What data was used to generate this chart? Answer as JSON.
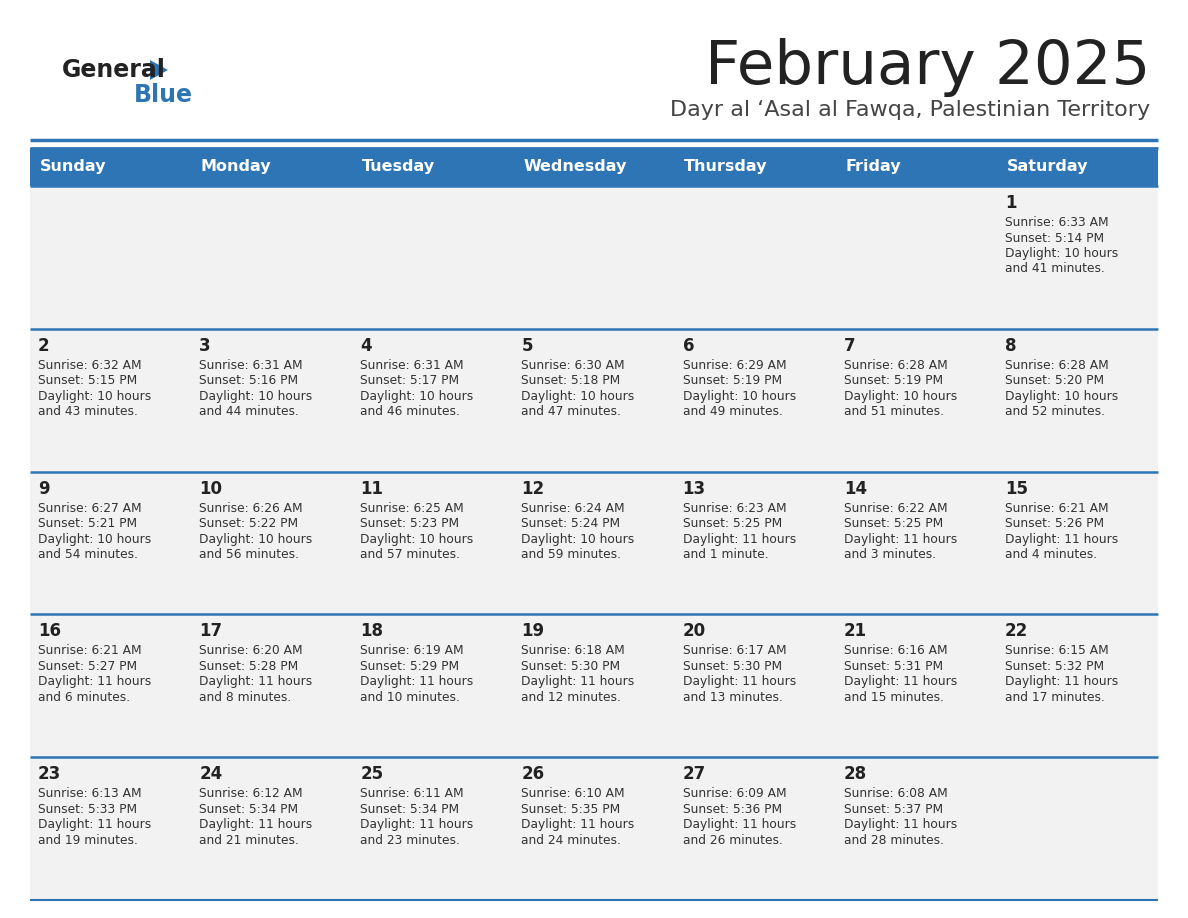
{
  "title": "February 2025",
  "subtitle": "Dayr al ‘Asal al Fawqa, Palestinian Territory",
  "header_color": "#2E75B6",
  "header_text_color": "#FFFFFF",
  "cell_bg": "#F2F2F2",
  "day_names": [
    "Sunday",
    "Monday",
    "Tuesday",
    "Wednesday",
    "Thursday",
    "Friday",
    "Saturday"
  ],
  "title_color": "#222222",
  "subtitle_color": "#444444",
  "line_color": "#2E75B6",
  "day_number_color": "#222222",
  "info_color": "#333333",
  "logo_text_color": "#222222",
  "logo_blue_color": "#2E75B6",
  "calendar": [
    [
      {
        "day": null,
        "info": null
      },
      {
        "day": null,
        "info": null
      },
      {
        "day": null,
        "info": null
      },
      {
        "day": null,
        "info": null
      },
      {
        "day": null,
        "info": null
      },
      {
        "day": null,
        "info": null
      },
      {
        "day": 1,
        "info": "Sunrise: 6:33 AM\nSunset: 5:14 PM\nDaylight: 10 hours\nand 41 minutes."
      }
    ],
    [
      {
        "day": 2,
        "info": "Sunrise: 6:32 AM\nSunset: 5:15 PM\nDaylight: 10 hours\nand 43 minutes."
      },
      {
        "day": 3,
        "info": "Sunrise: 6:31 AM\nSunset: 5:16 PM\nDaylight: 10 hours\nand 44 minutes."
      },
      {
        "day": 4,
        "info": "Sunrise: 6:31 AM\nSunset: 5:17 PM\nDaylight: 10 hours\nand 46 minutes."
      },
      {
        "day": 5,
        "info": "Sunrise: 6:30 AM\nSunset: 5:18 PM\nDaylight: 10 hours\nand 47 minutes."
      },
      {
        "day": 6,
        "info": "Sunrise: 6:29 AM\nSunset: 5:19 PM\nDaylight: 10 hours\nand 49 minutes."
      },
      {
        "day": 7,
        "info": "Sunrise: 6:28 AM\nSunset: 5:19 PM\nDaylight: 10 hours\nand 51 minutes."
      },
      {
        "day": 8,
        "info": "Sunrise: 6:28 AM\nSunset: 5:20 PM\nDaylight: 10 hours\nand 52 minutes."
      }
    ],
    [
      {
        "day": 9,
        "info": "Sunrise: 6:27 AM\nSunset: 5:21 PM\nDaylight: 10 hours\nand 54 minutes."
      },
      {
        "day": 10,
        "info": "Sunrise: 6:26 AM\nSunset: 5:22 PM\nDaylight: 10 hours\nand 56 minutes."
      },
      {
        "day": 11,
        "info": "Sunrise: 6:25 AM\nSunset: 5:23 PM\nDaylight: 10 hours\nand 57 minutes."
      },
      {
        "day": 12,
        "info": "Sunrise: 6:24 AM\nSunset: 5:24 PM\nDaylight: 10 hours\nand 59 minutes."
      },
      {
        "day": 13,
        "info": "Sunrise: 6:23 AM\nSunset: 5:25 PM\nDaylight: 11 hours\nand 1 minute."
      },
      {
        "day": 14,
        "info": "Sunrise: 6:22 AM\nSunset: 5:25 PM\nDaylight: 11 hours\nand 3 minutes."
      },
      {
        "day": 15,
        "info": "Sunrise: 6:21 AM\nSunset: 5:26 PM\nDaylight: 11 hours\nand 4 minutes."
      }
    ],
    [
      {
        "day": 16,
        "info": "Sunrise: 6:21 AM\nSunset: 5:27 PM\nDaylight: 11 hours\nand 6 minutes."
      },
      {
        "day": 17,
        "info": "Sunrise: 6:20 AM\nSunset: 5:28 PM\nDaylight: 11 hours\nand 8 minutes."
      },
      {
        "day": 18,
        "info": "Sunrise: 6:19 AM\nSunset: 5:29 PM\nDaylight: 11 hours\nand 10 minutes."
      },
      {
        "day": 19,
        "info": "Sunrise: 6:18 AM\nSunset: 5:30 PM\nDaylight: 11 hours\nand 12 minutes."
      },
      {
        "day": 20,
        "info": "Sunrise: 6:17 AM\nSunset: 5:30 PM\nDaylight: 11 hours\nand 13 minutes."
      },
      {
        "day": 21,
        "info": "Sunrise: 6:16 AM\nSunset: 5:31 PM\nDaylight: 11 hours\nand 15 minutes."
      },
      {
        "day": 22,
        "info": "Sunrise: 6:15 AM\nSunset: 5:32 PM\nDaylight: 11 hours\nand 17 minutes."
      }
    ],
    [
      {
        "day": 23,
        "info": "Sunrise: 6:13 AM\nSunset: 5:33 PM\nDaylight: 11 hours\nand 19 minutes."
      },
      {
        "day": 24,
        "info": "Sunrise: 6:12 AM\nSunset: 5:34 PM\nDaylight: 11 hours\nand 21 minutes."
      },
      {
        "day": 25,
        "info": "Sunrise: 6:11 AM\nSunset: 5:34 PM\nDaylight: 11 hours\nand 23 minutes."
      },
      {
        "day": 26,
        "info": "Sunrise: 6:10 AM\nSunset: 5:35 PM\nDaylight: 11 hours\nand 24 minutes."
      },
      {
        "day": 27,
        "info": "Sunrise: 6:09 AM\nSunset: 5:36 PM\nDaylight: 11 hours\nand 26 minutes."
      },
      {
        "day": 28,
        "info": "Sunrise: 6:08 AM\nSunset: 5:37 PM\nDaylight: 11 hours\nand 28 minutes."
      },
      {
        "day": null,
        "info": null
      }
    ]
  ]
}
